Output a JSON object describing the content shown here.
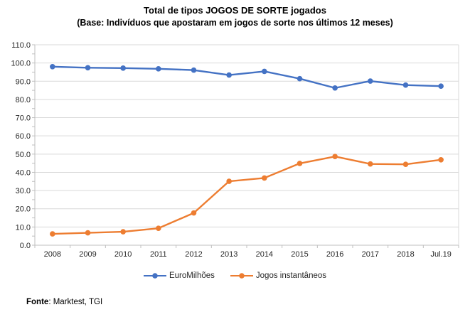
{
  "title": "Total de tipos JOGOS DE SORTE jogados",
  "subtitle": "(Base: Indivíduos que apostaram em jogos de sorte nos últimos 12 meses)",
  "footer": {
    "label": "Fonte",
    "text": ": Marktest, TGI"
  },
  "chart_data": {
    "type": "line",
    "title": "Total de tipos JOGOS DE SORTE jogados",
    "subtitle": "(Base: Indivíduos que apostaram em jogos de sorte nos últimos 12 meses)",
    "categories": [
      "2008",
      "2009",
      "2010",
      "2011",
      "2012",
      "2013",
      "2014",
      "2015",
      "2016",
      "2017",
      "2018",
      "Jul.19"
    ],
    "series": [
      {
        "name": "EuroMilhões",
        "color": "#4472C4",
        "marker": "circle",
        "values": [
          98.0,
          97.4,
          97.2,
          96.8,
          96.1,
          93.4,
          95.4,
          91.4,
          86.3,
          90.1,
          87.9,
          87.3
        ]
      },
      {
        "name": "Jogos instantâneos",
        "color": "#ED7D31",
        "marker": "circle",
        "values": [
          6.2,
          6.8,
          7.4,
          9.3,
          17.7,
          35.1,
          36.9,
          44.9,
          48.7,
          44.6,
          44.4,
          46.9
        ]
      }
    ],
    "ylim": [
      0,
      110
    ],
    "ytick_step": 10,
    "ytick_minor_step": 5,
    "ytick_decimals": 1,
    "grid": true,
    "legend_position": "bottom",
    "colors": {
      "gridline": "#D9D9D9",
      "axis": "#BFBFBF",
      "tick_text": "#262626"
    }
  }
}
